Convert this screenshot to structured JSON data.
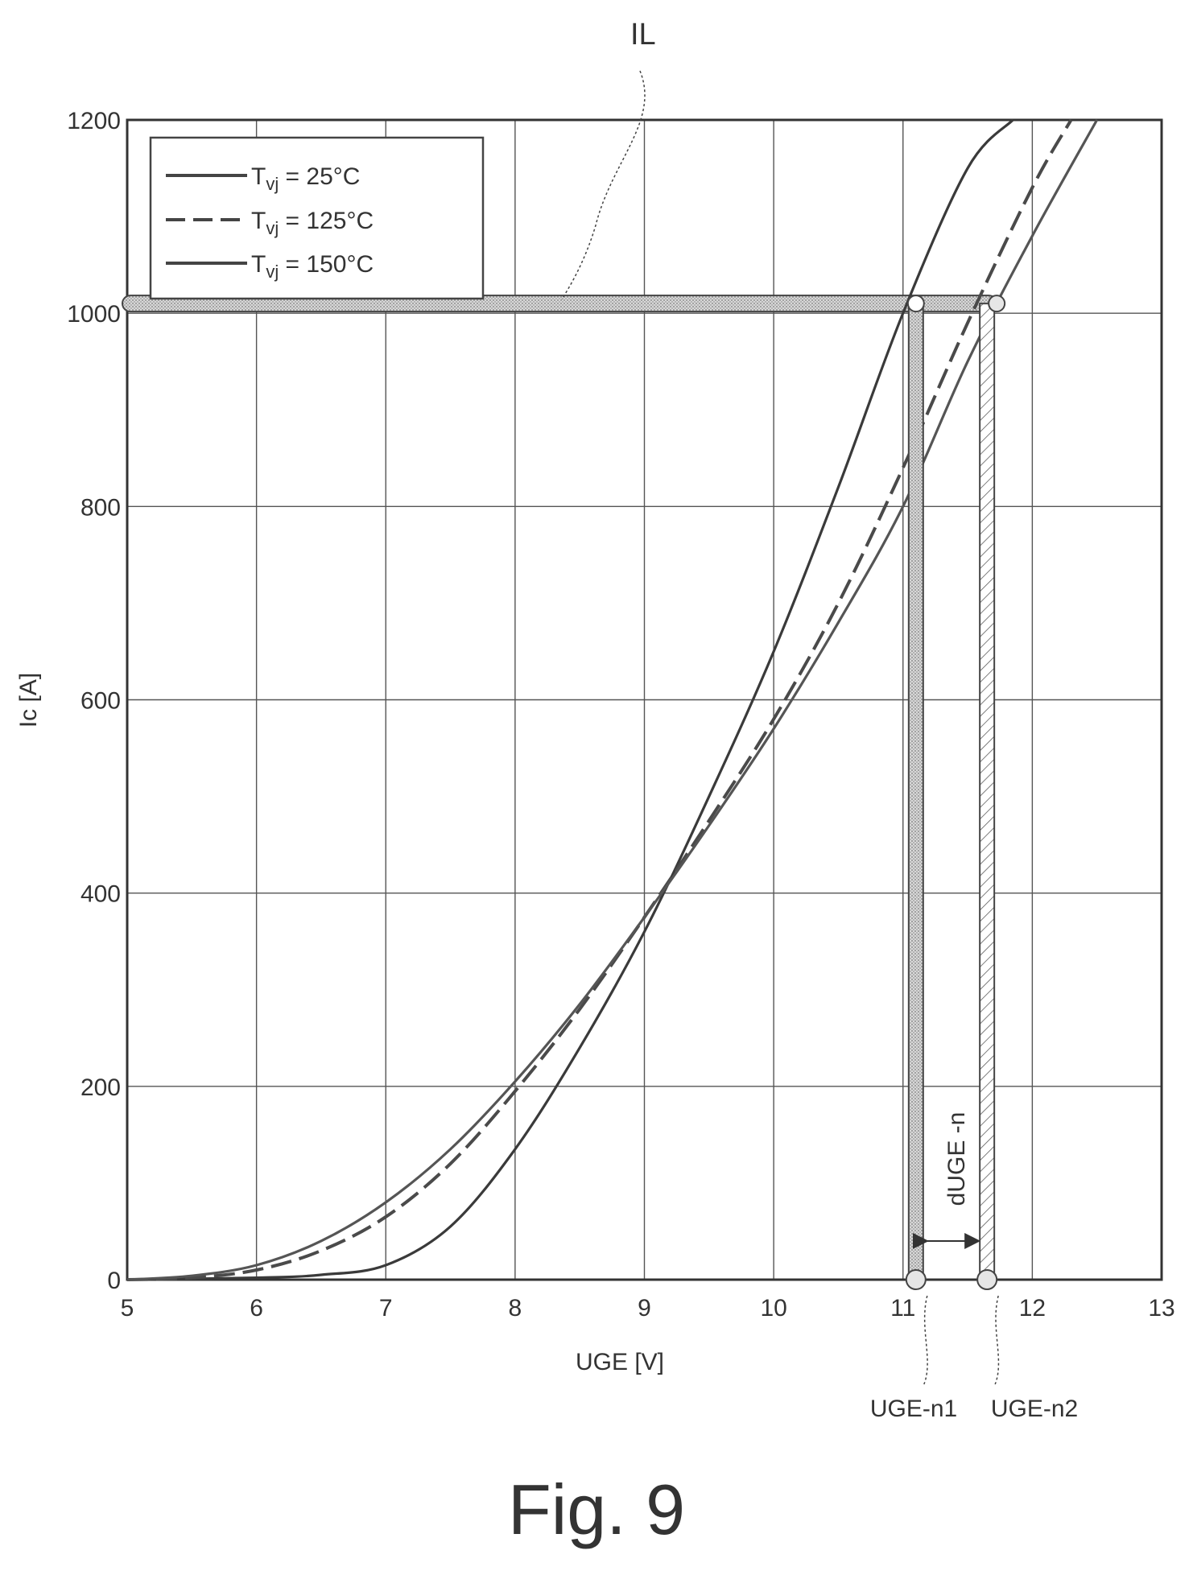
{
  "figure": {
    "caption": "Fig. 9",
    "annotation_il": "IL",
    "marker_label_1": "UGE-n1",
    "marker_label_2": "UGE-n2",
    "delta_label": "dUGE -n"
  },
  "legend": {
    "items": [
      {
        "prefix": "T",
        "sub": "vj",
        "suffix": " = 25°C"
      },
      {
        "prefix": "T",
        "sub": "vj",
        "suffix": " = 125°C"
      },
      {
        "prefix": "T",
        "sub": "vj",
        "suffix": " = 150°C"
      }
    ]
  },
  "chart_data": {
    "type": "line",
    "title": "",
    "xlabel": "UGE [V]",
    "ylabel": "Ic [A]",
    "xlim": [
      5,
      13
    ],
    "ylim": [
      0,
      1200
    ],
    "x_ticks": [
      5,
      6,
      7,
      8,
      9,
      10,
      11,
      12,
      13
    ],
    "y_ticks": [
      0,
      200,
      400,
      600,
      800,
      1000,
      1200
    ],
    "grid": true,
    "legend_position": "top-left",
    "series": [
      {
        "name": "Tvj = 25°C",
        "style": "solid",
        "x": [
          5,
          6,
          6.5,
          7,
          7.5,
          8,
          8.5,
          9,
          9.5,
          10,
          10.5,
          11,
          11.5,
          11.85
        ],
        "y": [
          0,
          2,
          5,
          15,
          55,
          135,
          240,
          360,
          500,
          650,
          820,
          1000,
          1150,
          1200
        ]
      },
      {
        "name": "Tvj = 125°C",
        "style": "dashed",
        "x": [
          5,
          5.5,
          6,
          6.5,
          7,
          7.5,
          8,
          8.5,
          9,
          9.5,
          10,
          10.5,
          11,
          11.5,
          12,
          12.3
        ],
        "y": [
          0,
          2,
          10,
          30,
          65,
          120,
          195,
          280,
          375,
          475,
          580,
          700,
          840,
          990,
          1130,
          1200
        ]
      },
      {
        "name": "Tvj = 150°C",
        "style": "solid",
        "x": [
          5,
          5.5,
          6,
          6.5,
          7,
          7.5,
          8,
          8.5,
          9,
          9.5,
          10,
          10.5,
          11,
          11.5,
          12,
          12.5
        ],
        "y": [
          0,
          4,
          15,
          40,
          80,
          135,
          205,
          285,
          375,
          470,
          570,
          680,
          800,
          950,
          1080,
          1200
        ]
      }
    ],
    "annotations": {
      "il_level": 1010,
      "uge_n1": 11.1,
      "uge_n2": 11.65
    }
  }
}
